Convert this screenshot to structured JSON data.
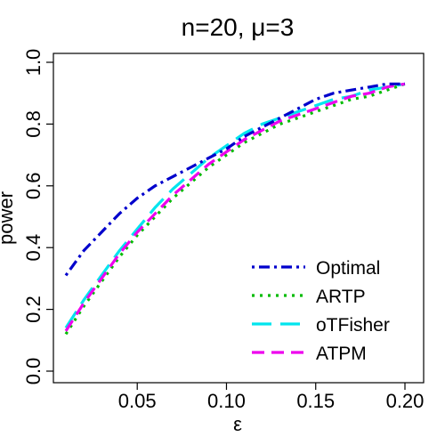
{
  "chart_data": {
    "type": "line",
    "title": "n=20, μ=3",
    "xlabel": "ε",
    "ylabel": "power",
    "xlim": [
      0.01,
      0.2
    ],
    "ylim": [
      0.0,
      1.0
    ],
    "x_ticks": [
      "0.05",
      "0.10",
      "0.15",
      "0.20"
    ],
    "y_ticks": [
      "0.0",
      "0.2",
      "0.4",
      "0.6",
      "0.8",
      "1.0"
    ],
    "legend_position": "bottom-right",
    "x": [
      0.01,
      0.02,
      0.03,
      0.04,
      0.05,
      0.06,
      0.07,
      0.08,
      0.09,
      0.1,
      0.11,
      0.12,
      0.13,
      0.14,
      0.15,
      0.16,
      0.17,
      0.18,
      0.19,
      0.2
    ],
    "series": [
      {
        "name": "Optimal",
        "color": "#0000cc",
        "dash": "dotdash",
        "values": [
          0.31,
          0.39,
          0.45,
          0.51,
          0.56,
          0.6,
          0.63,
          0.66,
          0.69,
          0.72,
          0.76,
          0.79,
          0.82,
          0.85,
          0.88,
          0.9,
          0.91,
          0.92,
          0.93,
          0.93
        ]
      },
      {
        "name": "ARTP",
        "color": "#00bb00",
        "dash": "dotted",
        "values": [
          0.12,
          0.21,
          0.29,
          0.37,
          0.44,
          0.5,
          0.56,
          0.61,
          0.66,
          0.7,
          0.74,
          0.77,
          0.8,
          0.82,
          0.84,
          0.86,
          0.88,
          0.89,
          0.91,
          0.93
        ]
      },
      {
        "name": "oTFisher",
        "color": "#00e5ee",
        "dash": "longdash",
        "values": [
          0.14,
          0.23,
          0.31,
          0.39,
          0.46,
          0.53,
          0.59,
          0.64,
          0.69,
          0.73,
          0.77,
          0.8,
          0.82,
          0.84,
          0.86,
          0.88,
          0.89,
          0.91,
          0.92,
          0.93
        ]
      },
      {
        "name": "ATPM",
        "color": "#ee00ee",
        "dash": "dashed",
        "values": [
          0.13,
          0.22,
          0.3,
          0.38,
          0.45,
          0.51,
          0.57,
          0.62,
          0.67,
          0.71,
          0.75,
          0.78,
          0.81,
          0.83,
          0.85,
          0.87,
          0.89,
          0.9,
          0.92,
          0.93
        ]
      }
    ]
  }
}
